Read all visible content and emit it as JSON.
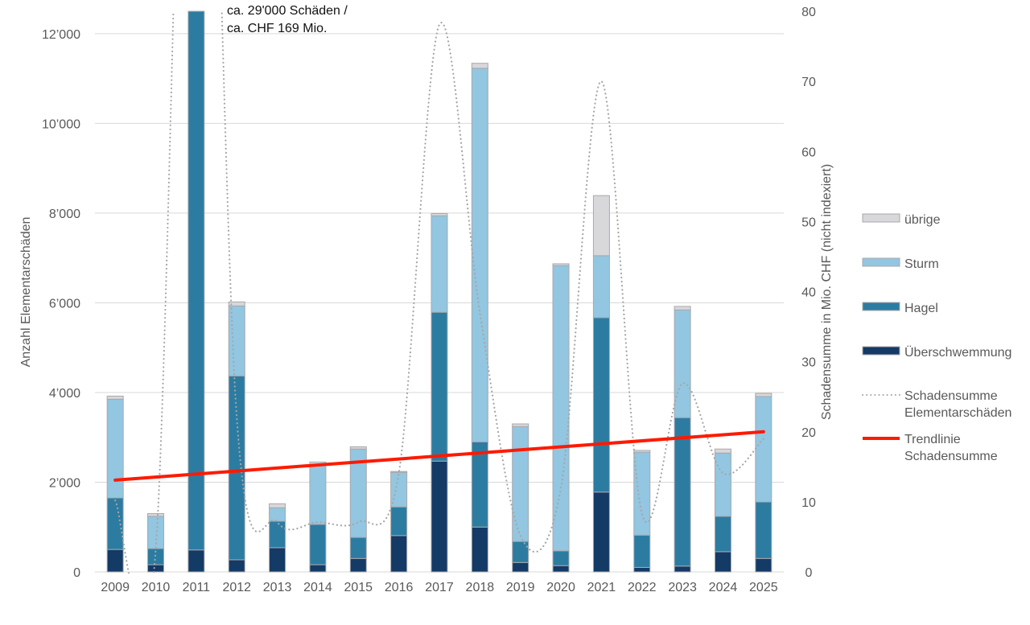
{
  "chart_data": {
    "type": "bar",
    "title": "",
    "xlabel": "",
    "ylabel": "Anzahl Elementarschäden",
    "y2label": "Schadensumme in Mio. CHF (nicht indexiert)",
    "ylim": [
      0,
      12500
    ],
    "y2lim": [
      0,
      80
    ],
    "yticks": [
      0,
      2000,
      4000,
      6000,
      8000,
      10000,
      12000
    ],
    "ytick_labels": [
      "0",
      "2’000",
      "4’000",
      "6’000",
      "8’000",
      "10’000",
      "12’000"
    ],
    "y2ticks": [
      0,
      10,
      20,
      30,
      40,
      50,
      60,
      70,
      80
    ],
    "y2tick_labels": [
      "0",
      "10",
      "20",
      "30",
      "40",
      "50",
      "60",
      "70",
      "80"
    ],
    "grid": true,
    "legend_position": "right",
    "categories": [
      "2009",
      "2010",
      "2011",
      "2012",
      "2013",
      "2014",
      "2015",
      "2016",
      "2017",
      "2018",
      "2019",
      "2020",
      "2021",
      "2022",
      "2023",
      "2024",
      "2025"
    ],
    "series": [
      {
        "name": "Überschwemmung",
        "kind": "stacked-bar",
        "color": "#143a66",
        "values": [
          500,
          160,
          490,
          270,
          540,
          160,
          300,
          810,
          2470,
          1000,
          210,
          140,
          1780,
          100,
          130,
          450,
          300
        ]
      },
      {
        "name": "Hagel",
        "kind": "stacked-bar",
        "color": "#2c7ca2",
        "values": [
          1150,
          360,
          28510,
          4100,
          590,
          900,
          470,
          640,
          3320,
          1900,
          470,
          330,
          3890,
          720,
          3310,
          790,
          1260
        ]
      },
      {
        "name": "Sturm",
        "kind": "stacked-bar",
        "color": "#92c6e1",
        "values": [
          2200,
          720,
          0,
          1560,
          300,
          1340,
          1970,
          770,
          2150,
          8330,
          2560,
          6360,
          1380,
          1850,
          2400,
          1410,
          2350
        ]
      },
      {
        "name": "übrige",
        "kind": "stacked-bar",
        "color": "#d8d7da",
        "values": [
          70,
          60,
          0,
          90,
          90,
          50,
          50,
          20,
          50,
          110,
          60,
          40,
          1340,
          40,
          80,
          90,
          70
        ]
      },
      {
        "name": "Schadensumme Elementarschäden",
        "kind": "line",
        "axis": "right",
        "style": "dotted",
        "color": "#a6a6a6",
        "values": [
          10.2,
          3.2,
          169,
          22,
          7.1,
          7.1,
          7.1,
          14.1,
          78.1,
          37,
          5.2,
          12,
          70,
          8.3,
          26.9,
          14.1,
          19.0
        ]
      },
      {
        "name": "Trendlinie Schadensumme",
        "kind": "line",
        "axis": "right",
        "style": "solid",
        "color": "#ff1a00",
        "values": [
          13.1,
          20.0
        ],
        "x_range": [
          "2009",
          "2025"
        ]
      }
    ],
    "annotations": [
      {
        "text_lines": [
          "ca. 29'000 Schäden /",
          "ca. CHF 169 Mio."
        ],
        "category": "2011"
      }
    ],
    "legend": [
      {
        "label_lines": [
          "übrige"
        ],
        "swatch": "bar",
        "color": "#d8d7da"
      },
      {
        "label_lines": [
          "Sturm"
        ],
        "swatch": "bar",
        "color": "#92c6e1"
      },
      {
        "label_lines": [
          "Hagel"
        ],
        "swatch": "bar",
        "color": "#2c7ca2"
      },
      {
        "label_lines": [
          "Überschwemmung"
        ],
        "swatch": "bar",
        "color": "#143a66"
      },
      {
        "label_lines": [
          "Schadensumme",
          "Elementarschäden"
        ],
        "swatch": "dotted",
        "color": "#a6a6a6"
      },
      {
        "label_lines": [
          "Trendlinie",
          "Schadensumme"
        ],
        "swatch": "line",
        "color": "#ff1a00"
      }
    ]
  }
}
